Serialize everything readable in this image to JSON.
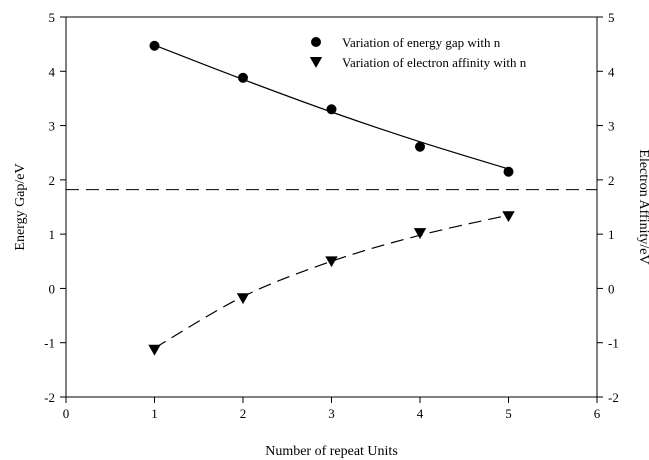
{
  "chart_data": {
    "type": "scatter",
    "title": "",
    "xlabel": "Number of repeat Units",
    "ylabel_left": "Energy Gap/eV",
    "ylabel_right": "Electron Affinity/eV",
    "xlim": [
      0,
      6
    ],
    "ylim": [
      -2,
      5
    ],
    "x_ticks": [
      "0",
      "1",
      "2",
      "3",
      "4",
      "5",
      "6"
    ],
    "y_ticks_left": [
      "-2",
      "-1",
      "0",
      "1",
      "2",
      "3",
      "4",
      "5"
    ],
    "y_ticks_right": [
      "-2",
      "-1",
      "0",
      "1",
      "2",
      "3",
      "4",
      "5"
    ],
    "grid": false,
    "legend_position": "top-right",
    "reference_line": {
      "y": 1.82,
      "style": "dashed"
    },
    "series": [
      {
        "name": "Variation of energy gap with n",
        "marker": "circle",
        "axis": "left",
        "fit_line": "solid",
        "x": [
          1,
          2,
          3,
          4,
          5
        ],
        "y": [
          4.47,
          3.88,
          3.3,
          2.61,
          2.15
        ],
        "fit": [
          4.48,
          3.85,
          3.25,
          2.7,
          2.2
        ]
      },
      {
        "name": "Variation of electron affinity with n",
        "marker": "triangle-down",
        "axis": "right",
        "fit_line": "dashed",
        "x": [
          1,
          2,
          3,
          4,
          5
        ],
        "y": [
          -1.13,
          -0.18,
          0.5,
          1.02,
          1.33
        ],
        "fit": [
          -1.1,
          -0.15,
          0.5,
          0.98,
          1.35
        ]
      }
    ]
  }
}
